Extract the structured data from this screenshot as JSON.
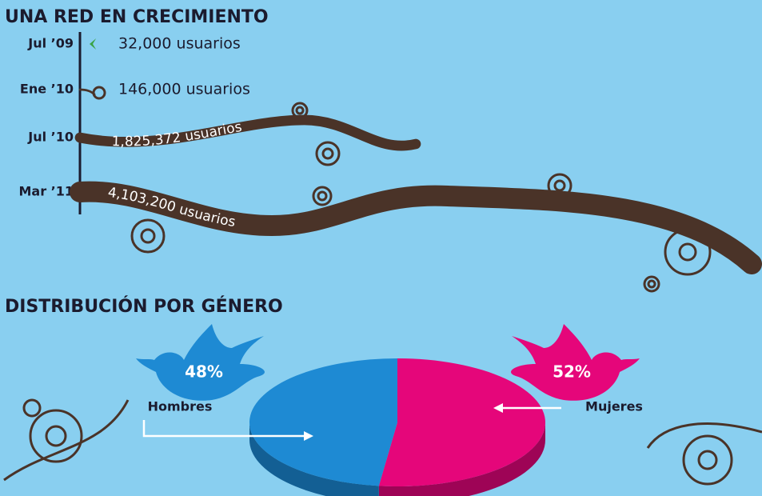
{
  "chart_data": [
    {
      "type": "growth",
      "title": "UNA RED EN CRECIMIENTO",
      "categories": [
        "Jul ’09",
        "Ene ’10",
        "Jul ’10",
        "Mar ’11"
      ],
      "values": [
        32000,
        146000,
        1825372,
        4103200
      ],
      "value_labels": [
        "32,000 usuarios",
        "146,000 usuarios",
        "1,825,372 usuarios",
        "4,103,200 usuarios"
      ],
      "color": "#4a3328"
    },
    {
      "type": "pie",
      "title": "DISTRIBUCIÓN POR GÉNERO",
      "categories": [
        "Hombres",
        "Mujeres"
      ],
      "values": [
        48,
        52
      ],
      "value_labels": [
        "48%",
        "52%"
      ],
      "colors": [
        "#1e8ad3",
        "#e5067a"
      ]
    }
  ]
}
